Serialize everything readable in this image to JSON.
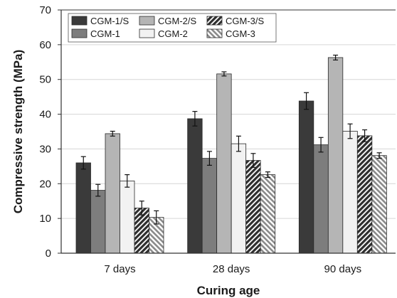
{
  "chart_data": {
    "type": "bar",
    "title": "",
    "xlabel": "Curing age",
    "ylabel": "Compressive strength (MPa)",
    "ylim": [
      0,
      70
    ],
    "yticks": [
      "0",
      "10",
      "20",
      "30",
      "40",
      "50",
      "60",
      "70"
    ],
    "categories": [
      "7 days",
      "28 days",
      "90 days"
    ],
    "grid": true,
    "legend_position": "top-left",
    "series": [
      {
        "name": "CGM-1/S",
        "values": [
          26.0,
          38.7,
          43.8
        ],
        "errors": [
          1.8,
          2.1,
          2.4
        ],
        "color": "#3a3a3a",
        "pattern": "solid"
      },
      {
        "name": "CGM-1",
        "values": [
          18.1,
          27.3,
          31.2
        ],
        "errors": [
          1.7,
          2.0,
          2.1
        ],
        "color": "#7d7d7d",
        "pattern": "solid"
      },
      {
        "name": "CGM-2/S",
        "values": [
          34.4,
          51.6,
          56.3
        ],
        "errors": [
          0.7,
          0.6,
          0.7
        ],
        "color": "#b5b5b5",
        "pattern": "solid"
      },
      {
        "name": "CGM-2",
        "values": [
          20.8,
          31.5,
          35.1
        ],
        "errors": [
          1.8,
          2.2,
          2.1
        ],
        "color": "#f2f2f2",
        "pattern": "solid"
      },
      {
        "name": "CGM-3/S",
        "values": [
          13.0,
          26.7,
          33.8
        ],
        "errors": [
          2.0,
          2.0,
          1.7
        ],
        "color": "#3a3a3a",
        "pattern": "hatch-dark"
      },
      {
        "name": "CGM-3",
        "values": [
          10.3,
          22.6,
          28.1
        ],
        "errors": [
          1.9,
          0.8,
          0.8
        ],
        "color": "#9a9a9a",
        "pattern": "hatch-light"
      }
    ]
  }
}
